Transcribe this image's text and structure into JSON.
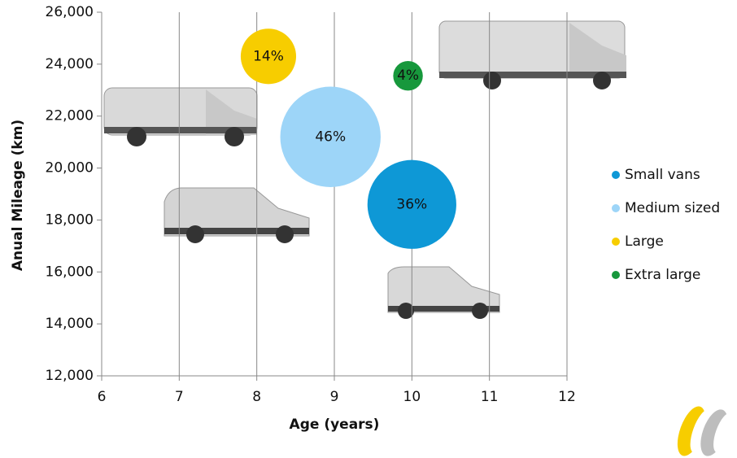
{
  "chart_data": {
    "type": "bubble",
    "xlabel": "Age (years)",
    "ylabel": "Anual Mileage (km)",
    "xlim": [
      6,
      12
    ],
    "xticks": [
      6,
      7,
      8,
      9,
      10,
      11,
      12
    ],
    "ylim": [
      12000,
      26000
    ],
    "yticks": [
      {
        "value": 12000,
        "label": "12,000"
      },
      {
        "value": 14000,
        "label": "14,000"
      },
      {
        "value": 16000,
        "label": "16,000"
      },
      {
        "value": 18000,
        "label": "18,000"
      },
      {
        "value": 20000,
        "label": "20,000"
      },
      {
        "value": 22000,
        "label": "22,000"
      },
      {
        "value": 24000,
        "label": "24,000"
      },
      {
        "value": 26000,
        "label": "26,000"
      }
    ],
    "grid": "x",
    "legend": "right",
    "series": [
      {
        "name": "Small vans",
        "color": "#0e98d6",
        "x": [
          10
        ],
        "y": [
          18600
        ],
        "size": [
          36
        ],
        "value_labels": [
          "36%"
        ]
      },
      {
        "name": "Medium sized",
        "color": "#9dd5f8",
        "x": [
          8.95
        ],
        "y": [
          21200
        ],
        "size": [
          46
        ],
        "value_labels": [
          "46%"
        ]
      },
      {
        "name": "Large",
        "color": "#f7cd00",
        "x": [
          8.15
        ],
        "y": [
          24300
        ],
        "size": [
          14
        ],
        "value_labels": [
          "14%"
        ]
      },
      {
        "name": "Extra large",
        "color": "#17983c",
        "x": [
          9.95
        ],
        "y": [
          23550
        ],
        "size": [
          4
        ],
        "value_labels": [
          "4%"
        ]
      }
    ]
  }
}
